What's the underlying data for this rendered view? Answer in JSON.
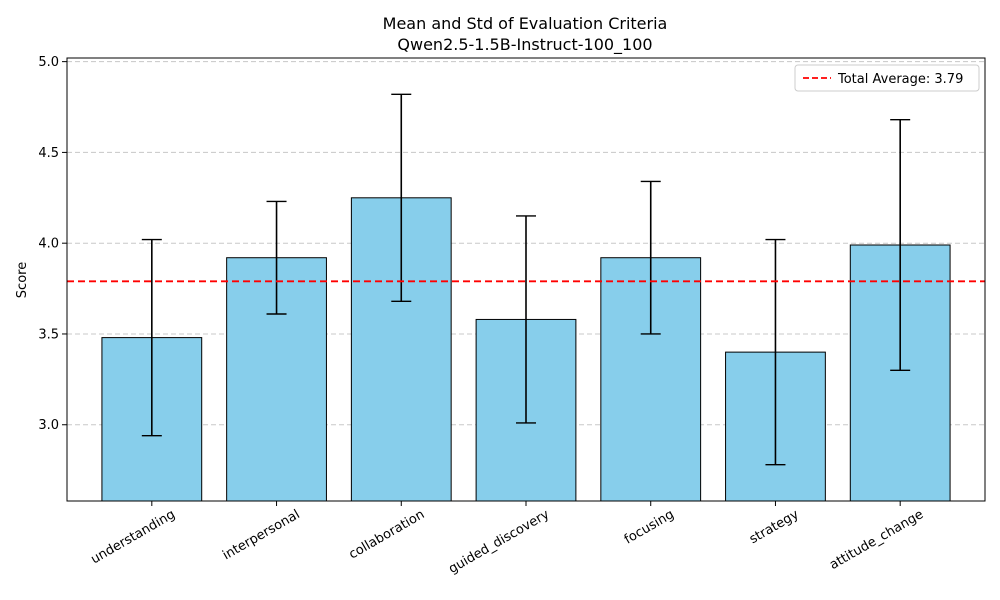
{
  "chart_data": {
    "type": "bar",
    "title": "Mean and Std of Evaluation Criteria",
    "subtitle": "Qwen2.5-1.5B-Instruct-100_100",
    "xlabel": "",
    "ylabel": "Score",
    "ylim": [
      2.58,
      5.02
    ],
    "yticks": [
      "3.0",
      "3.5",
      "4.0",
      "4.5",
      "5.0"
    ],
    "ytick_values": [
      3.0,
      3.5,
      4.0,
      4.5,
      5.0
    ],
    "grid": "y-dashed",
    "categories": [
      "understanding",
      "interpersonal",
      "collaboration",
      "guided_discovery",
      "focusing",
      "strategy",
      "attitude_change"
    ],
    "values": [
      3.48,
      3.92,
      4.25,
      3.58,
      3.92,
      3.4,
      3.99
    ],
    "errors": [
      0.54,
      0.31,
      0.57,
      0.57,
      0.42,
      0.62,
      0.69
    ],
    "bar_color": "#87CEEB",
    "bar_edge_color": "#000000",
    "reference_line": {
      "value": 3.79,
      "label": "Total Average: 3.79",
      "color": "#ff0000",
      "style": "dashed"
    },
    "legend_position": "top-right"
  }
}
